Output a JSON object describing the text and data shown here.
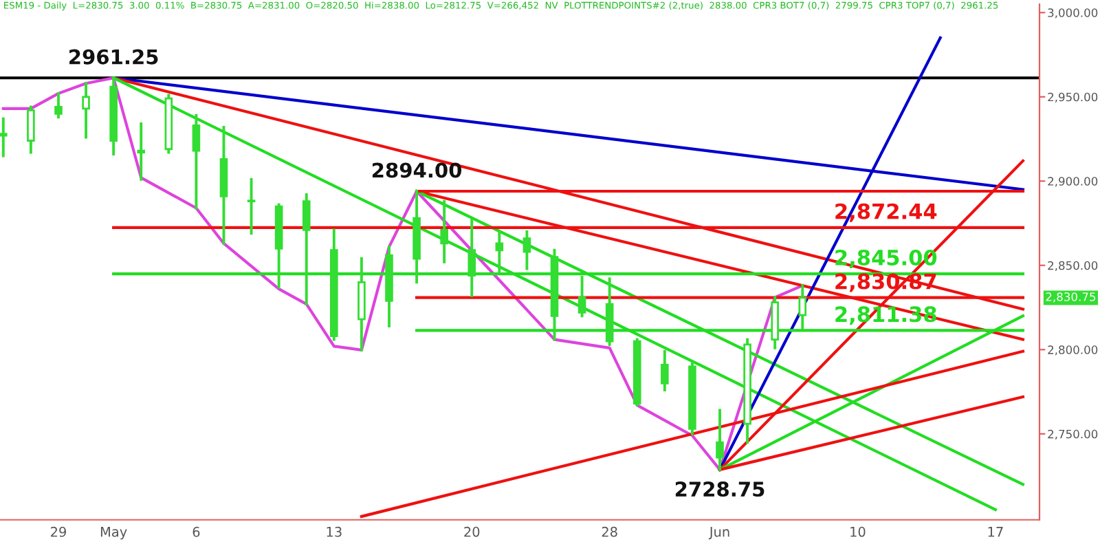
{
  "chart_data": {
    "type": "candlestick",
    "title": "ESM19 - Daily  L=2830.75  3.00  0.11%  B=2830.75  A=2831.00  O=2820.50  Hi=2838.00  Lo=2812.75  V=266,452  NV  PLOTTRENDPOINTS#2 (2,true)  2838.00  CPR3 BOT7 (0,7)  2799.75  CPR3 TOP7 (0,7)  2961.25",
    "color": "#33dd33",
    "categories": [
      null,
      null,
      "29",
      null,
      "May",
      null,
      null,
      "6",
      null,
      null,
      null,
      null,
      "13",
      null,
      null,
      null,
      null,
      "20",
      null,
      null,
      null,
      null,
      "28",
      null,
      null,
      null,
      "Jun",
      null,
      null,
      null,
      null,
      "10",
      null,
      null,
      null,
      null,
      "17",
      null
    ],
    "ohlc": [
      [
        2928,
        2937,
        2915,
        2927
      ],
      [
        2924,
        2944,
        2917,
        2942
      ],
      [
        2944,
        2952,
        2938,
        2940
      ],
      [
        2943,
        2958,
        2926,
        2950
      ],
      [
        2956,
        2961.25,
        2916,
        2924
      ],
      [
        2917,
        2934,
        2901,
        2918
      ],
      [
        2919,
        2951,
        2917,
        2949
      ],
      [
        2933,
        2939,
        2884,
        2918
      ],
      [
        2913,
        2932,
        2863,
        2891
      ],
      [
        2888,
        2901,
        2869,
        2888
      ],
      [
        2885,
        2886,
        2837,
        2860
      ],
      [
        2888,
        2892,
        2827,
        2871
      ],
      [
        2859,
        2871,
        2806,
        2808
      ],
      [
        2818,
        2854,
        2799.75,
        2840
      ],
      [
        2856,
        2861,
        2814,
        2829
      ],
      [
        2878,
        2894,
        2840,
        2854
      ],
      [
        2871,
        2888,
        2852,
        2863
      ],
      [
        2859,
        2877,
        2832,
        2844
      ],
      [
        2863,
        2870,
        2846,
        2859
      ],
      [
        2866,
        2870,
        2848,
        2858
      ],
      [
        2855,
        2859,
        2806,
        2820
      ],
      [
        2831,
        2843,
        2820,
        2822
      ],
      [
        2827,
        2842,
        2803,
        2805
      ],
      [
        2805,
        2806,
        2767,
        2768
      ],
      [
        2791,
        2799,
        2776,
        2780
      ],
      [
        2790,
        2792,
        2750,
        2753
      ],
      [
        2745,
        2764,
        2728.75,
        2736
      ],
      [
        2756,
        2806,
        2745,
        2803
      ],
      [
        2806,
        2831,
        2801,
        2828
      ],
      [
        2820.5,
        2838,
        2812.75,
        2830.75
      ],
      null,
      null,
      null,
      null,
      null,
      null,
      null,
      null
    ],
    "series": [
      {
        "type": "line",
        "color": "#dd44dd",
        "values": [
          2943,
          2943,
          2952,
          2958,
          2961.25,
          2902,
          null,
          2884,
          2863,
          null,
          2836,
          2827,
          2802,
          2799.75,
          2861,
          2894,
          null,
          null,
          null,
          null,
          2806,
          null,
          2801,
          2767,
          null,
          2749,
          2728.75,
          null,
          2831,
          2838,
          null,
          null,
          null,
          null,
          null,
          null,
          null,
          null
        ]
      },
      {
        "type": "line",
        "color": "#0000cc",
        "values": [
          null,
          null,
          null,
          null,
          2961.25,
          null,
          null,
          null,
          null,
          null,
          null,
          null,
          null,
          null,
          null,
          null,
          null,
          null,
          null,
          null,
          null,
          null,
          null,
          null,
          null,
          null,
          null,
          null,
          null,
          null,
          null,
          null,
          null,
          null,
          null,
          null,
          null,
          2895
        ]
      },
      {
        "type": "line",
        "color": "#ee1111",
        "values": [
          null,
          null,
          null,
          null,
          2961.25,
          null,
          null,
          null,
          null,
          null,
          null,
          null,
          null,
          null,
          null,
          null,
          null,
          null,
          null,
          null,
          null,
          null,
          null,
          null,
          null,
          null,
          null,
          null,
          null,
          null,
          null,
          null,
          null,
          null,
          null,
          null,
          null,
          2824
        ]
      },
      {
        "type": "line",
        "color": "#ee1111",
        "values": [
          null,
          null,
          null,
          null,
          null,
          null,
          null,
          null,
          null,
          null,
          null,
          null,
          null,
          null,
          null,
          2894,
          null,
          null,
          null,
          null,
          null,
          null,
          null,
          null,
          null,
          null,
          null,
          null,
          null,
          null,
          null,
          null,
          null,
          null,
          null,
          null,
          null,
          2806
        ]
      },
      {
        "type": "line",
        "color": "#22dd22",
        "values": [
          null,
          null,
          null,
          null,
          2961.25,
          null,
          null,
          null,
          null,
          null,
          null,
          null,
          null,
          null,
          null,
          null,
          null,
          null,
          null,
          null,
          null,
          null,
          null,
          null,
          null,
          null,
          null,
          null,
          null,
          null,
          null,
          null,
          null,
          null,
          null,
          null,
          2705,
          null
        ]
      },
      {
        "type": "line",
        "color": "#22dd22",
        "values": [
          null,
          null,
          null,
          null,
          null,
          null,
          null,
          null,
          null,
          null,
          null,
          null,
          null,
          null,
          null,
          2894,
          null,
          null,
          null,
          null,
          null,
          null,
          null,
          null,
          null,
          null,
          null,
          null,
          null,
          null,
          null,
          null,
          null,
          null,
          null,
          null,
          null,
          2720
        ]
      },
      {
        "type": "line",
        "color": "#0000cc",
        "values": [
          null,
          null,
          null,
          null,
          null,
          null,
          null,
          null,
          null,
          null,
          null,
          null,
          null,
          null,
          null,
          null,
          null,
          null,
          null,
          null,
          null,
          null,
          null,
          null,
          null,
          null,
          2728.75,
          null,
          null,
          null,
          null,
          null,
          null,
          null,
          2985,
          null,
          null,
          null
        ]
      },
      {
        "type": "line",
        "color": "#ee1111",
        "values": [
          null,
          null,
          null,
          null,
          null,
          null,
          null,
          null,
          null,
          null,
          null,
          null,
          null,
          null,
          null,
          null,
          null,
          null,
          null,
          null,
          null,
          null,
          null,
          null,
          null,
          null,
          2728.75,
          null,
          null,
          null,
          null,
          null,
          null,
          null,
          null,
          null,
          null,
          2912
        ]
      },
      {
        "type": "line",
        "color": "#22dd22",
        "values": [
          null,
          null,
          null,
          null,
          null,
          null,
          null,
          null,
          null,
          null,
          null,
          null,
          null,
          null,
          null,
          null,
          null,
          null,
          null,
          null,
          null,
          null,
          null,
          null,
          null,
          null,
          2728.75,
          null,
          null,
          null,
          null,
          null,
          null,
          null,
          null,
          null,
          null,
          2820
        ]
      },
      {
        "type": "line",
        "color": "#ee1111",
        "values": [
          null,
          null,
          null,
          null,
          null,
          null,
          null,
          null,
          null,
          null,
          null,
          null,
          null,
          null,
          null,
          null,
          null,
          null,
          null,
          null,
          null,
          null,
          null,
          null,
          null,
          null,
          2728.75,
          null,
          null,
          null,
          null,
          null,
          null,
          null,
          null,
          null,
          null,
          2772
        ]
      },
      {
        "type": "line",
        "color": "#ee1111",
        "values": [
          null,
          null,
          null,
          null,
          null,
          null,
          null,
          null,
          null,
          null,
          null,
          null,
          null,
          2701,
          null,
          null,
          null,
          null,
          null,
          null,
          null,
          null,
          null,
          null,
          null,
          null,
          null,
          null,
          null,
          null,
          null,
          null,
          null,
          null,
          null,
          null,
          null,
          2799
        ]
      },
      {
        "type": "line",
        "color": "#ee1111",
        "values": [
          null,
          null,
          null,
          null,
          null,
          null,
          null,
          null,
          null,
          null,
          null,
          null,
          null,
          null,
          null,
          2894,
          null,
          null,
          null,
          null,
          null,
          null,
          null,
          null,
          null,
          null,
          null,
          null,
          null,
          null,
          null,
          null,
          null,
          null,
          null,
          null,
          null,
          2894
        ]
      },
      {
        "type": "line",
        "color": "#ee1111",
        "name": "2,872.44",
        "values": [
          null,
          null,
          null,
          null,
          2872.44,
          null,
          null,
          null,
          null,
          null,
          null,
          null,
          null,
          null,
          null,
          null,
          null,
          null,
          null,
          null,
          null,
          null,
          null,
          null,
          null,
          null,
          null,
          null,
          null,
          null,
          null,
          null,
          null,
          null,
          null,
          null,
          null,
          2872.44
        ]
      },
      {
        "type": "line",
        "color": "#22dd22",
        "name": "2,845.00",
        "values": [
          null,
          null,
          null,
          null,
          2845,
          null,
          null,
          null,
          null,
          null,
          null,
          null,
          null,
          null,
          null,
          null,
          null,
          null,
          null,
          null,
          null,
          null,
          null,
          null,
          null,
          null,
          null,
          null,
          null,
          null,
          null,
          null,
          null,
          null,
          null,
          null,
          null,
          2845
        ]
      },
      {
        "type": "line",
        "color": "#ee1111",
        "name": "2,830.87",
        "values": [
          null,
          null,
          null,
          null,
          null,
          null,
          null,
          null,
          null,
          null,
          null,
          null,
          null,
          null,
          null,
          2830.87,
          null,
          null,
          null,
          null,
          null,
          null,
          null,
          null,
          null,
          null,
          null,
          null,
          null,
          null,
          null,
          null,
          null,
          null,
          null,
          null,
          null,
          2830.87
        ]
      },
      {
        "type": "line",
        "color": "#22dd22",
        "name": "2,811.38",
        "values": [
          null,
          null,
          null,
          null,
          null,
          null,
          null,
          null,
          null,
          null,
          null,
          null,
          null,
          null,
          null,
          2811.38,
          null,
          null,
          null,
          null,
          null,
          null,
          null,
          null,
          null,
          null,
          null,
          null,
          null,
          null,
          null,
          null,
          null,
          null,
          null,
          null,
          null,
          2811.38
        ]
      }
    ],
    "ref_lines": [
      {
        "axis": "y",
        "value": 2961.25,
        "color": "#000000"
      }
    ],
    "annotations": [
      {
        "text": "2961.25",
        "y": 2961.25
      },
      {
        "text": "2894.00",
        "y": 2894
      },
      {
        "text": "2728.75",
        "y": 2728.75
      },
      "2,830.75"
    ],
    "ylim": [
      2699,
      3005
    ],
    "yticks": [
      {
        "value": 2750,
        "label": "2,750.00"
      },
      {
        "value": 2800,
        "label": "2,800.00"
      },
      {
        "value": 2850,
        "label": "2,850.00"
      },
      {
        "value": 2900,
        "label": "2,900.00"
      },
      {
        "value": 2950,
        "label": "2,950.00"
      },
      {
        "value": 3000,
        "label": "3,000.00"
      }
    ]
  }
}
